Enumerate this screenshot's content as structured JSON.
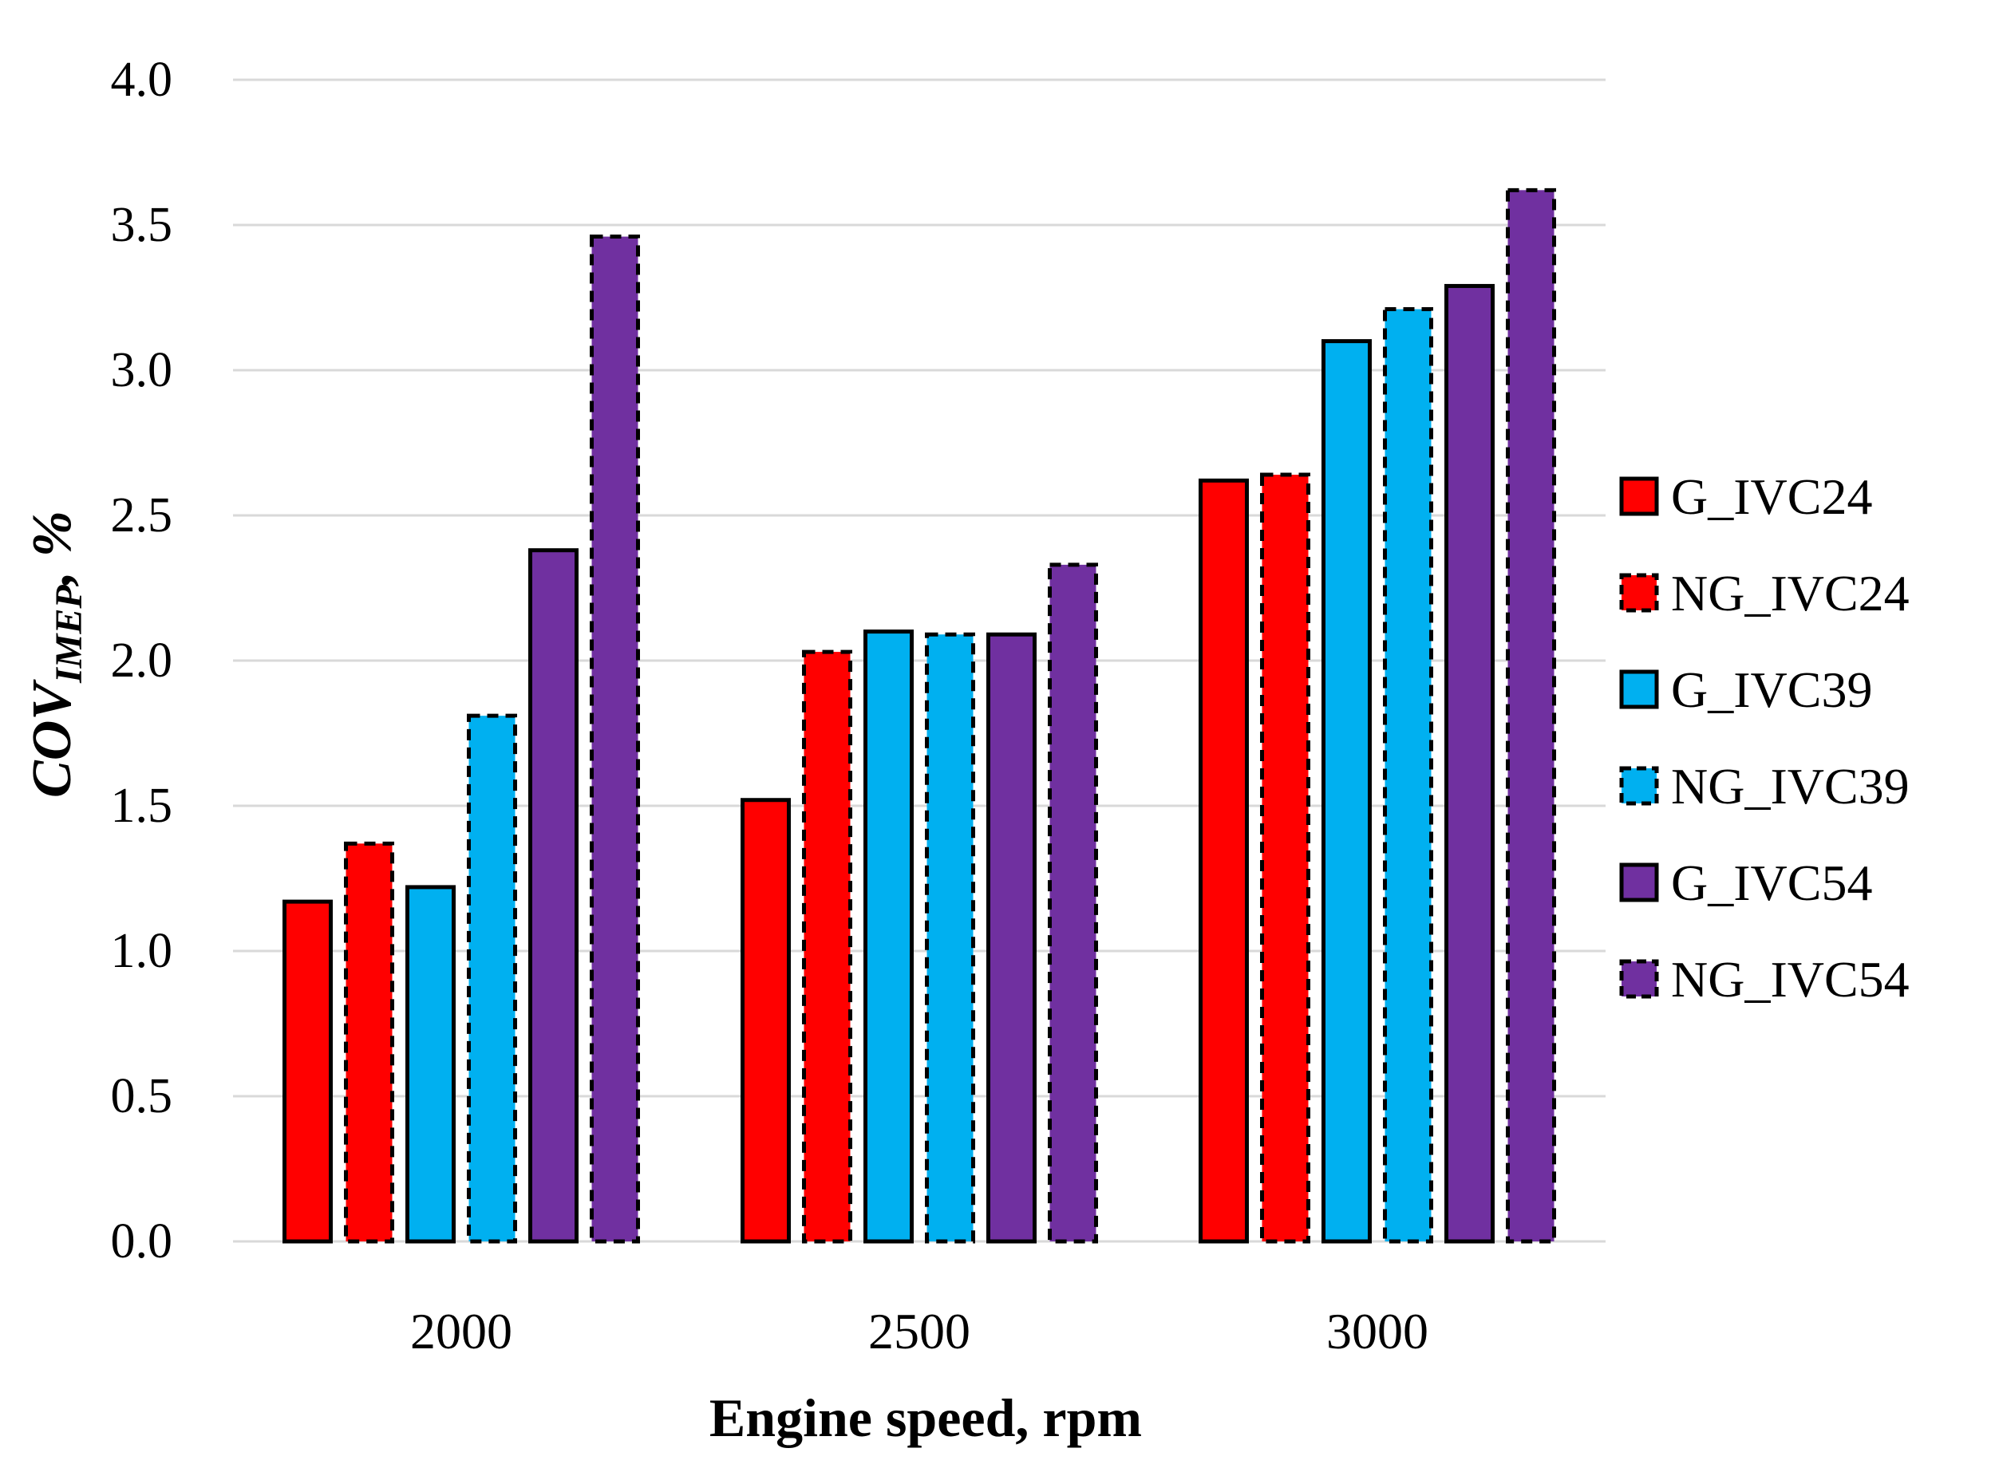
{
  "chart_data": {
    "type": "bar",
    "title": "",
    "xlabel": "Engine speed, rpm",
    "ylabel_main": "COV",
    "ylabel_sub": "IMEP",
    "ylabel_suffix": ", %",
    "categories": [
      "2000",
      "2500",
      "3000"
    ],
    "ylim": [
      0,
      4.0
    ],
    "yticks": [
      "0.0",
      "0.5",
      "1.0",
      "1.5",
      "2.0",
      "2.5",
      "3.0",
      "3.5",
      "4.0"
    ],
    "grid": true,
    "legend_position": "right",
    "series": [
      {
        "name": "G_IVC24",
        "color": "#ff0000",
        "dashed": false,
        "values": [
          1.17,
          1.52,
          2.62
        ]
      },
      {
        "name": "NG_IVC24",
        "color": "#ff0000",
        "dashed": true,
        "values": [
          1.37,
          2.03,
          2.64
        ]
      },
      {
        "name": "G_IVC39",
        "color": "#00b0f0",
        "dashed": false,
        "values": [
          1.22,
          2.1,
          3.1
        ]
      },
      {
        "name": "NG_IVC39",
        "color": "#00b0f0",
        "dashed": true,
        "values": [
          1.81,
          2.09,
          3.21
        ]
      },
      {
        "name": "G_IVC54",
        "color": "#7030a0",
        "dashed": false,
        "values": [
          2.38,
          2.09,
          3.29
        ]
      },
      {
        "name": "NG_IVC54",
        "color": "#7030a0",
        "dashed": true,
        "values": [
          3.46,
          2.33,
          3.62
        ]
      }
    ]
  }
}
